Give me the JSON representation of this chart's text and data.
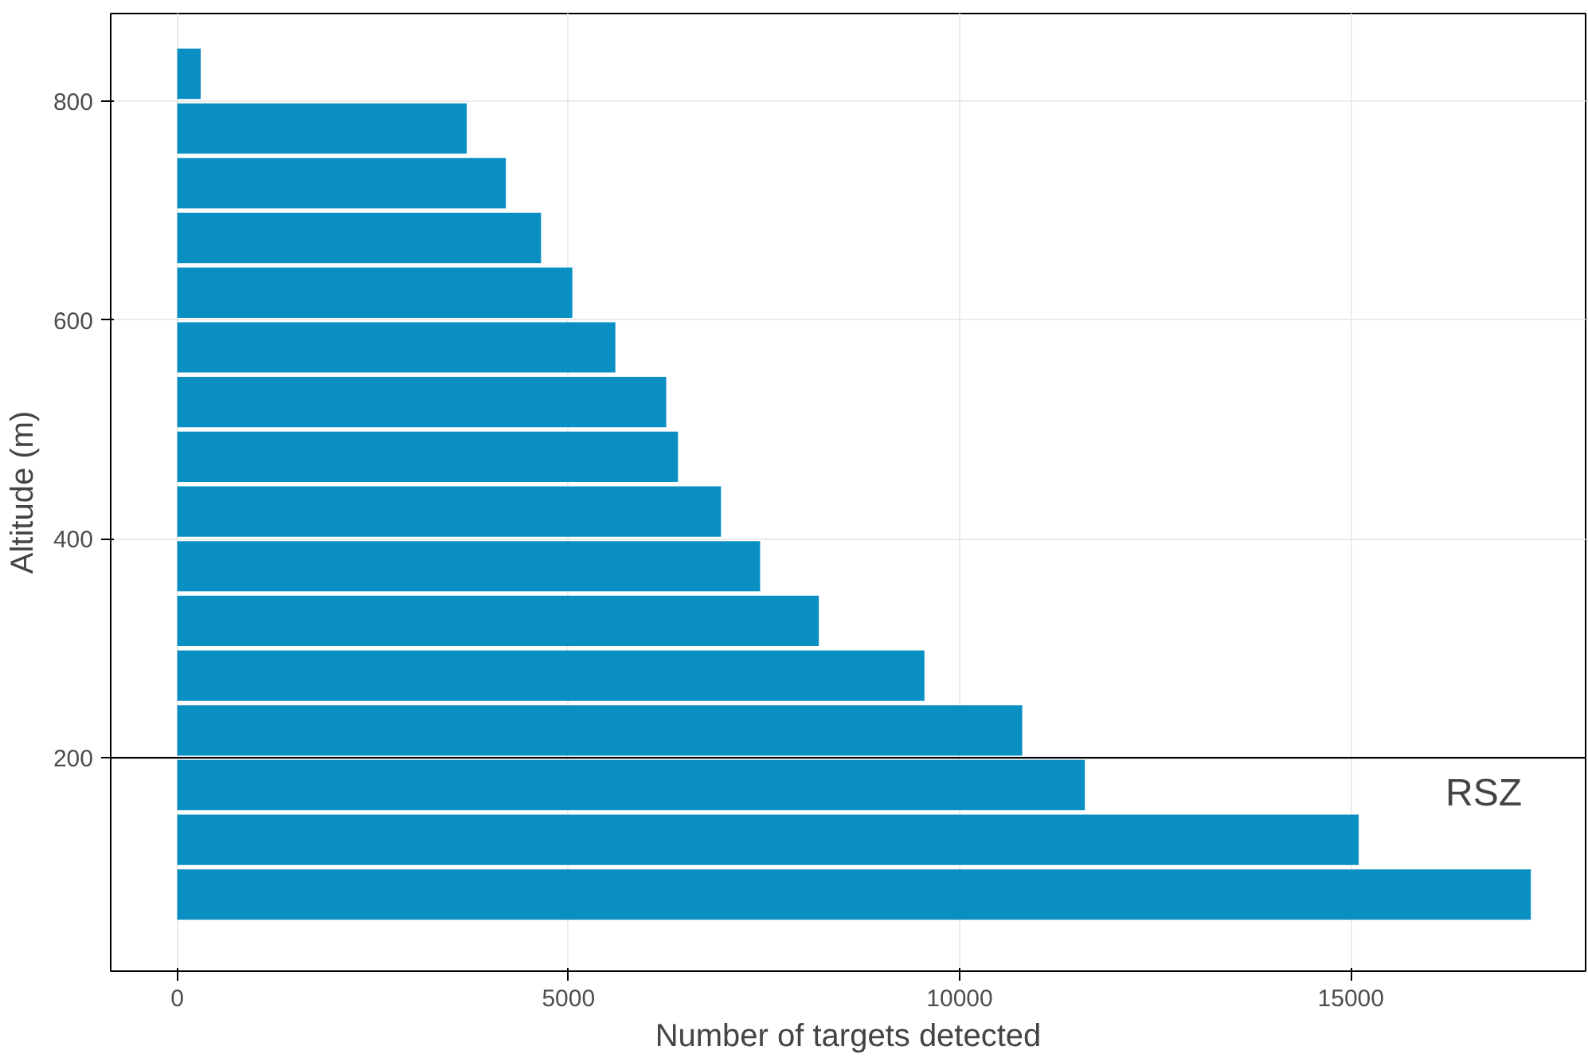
{
  "chart_data": {
    "type": "bar",
    "orientation": "horizontal",
    "xlabel": "Number of targets detected",
    "ylabel": "Altitude (m)",
    "x": [
      75,
      125,
      175,
      225,
      275,
      325,
      375,
      425,
      475,
      525,
      575,
      625,
      675,
      725,
      775,
      825
    ],
    "values": [
      17300,
      15100,
      11600,
      10800,
      9550,
      8200,
      7450,
      6950,
      6400,
      6250,
      5600,
      5050,
      4650,
      4200,
      3700,
      300
    ],
    "color": "#0a8fc3",
    "xlim": [
      -850,
      18000
    ],
    "xticks": [
      0,
      5000,
      10000,
      15000
    ],
    "ylim": [
      5,
      880
    ],
    "yticks": [
      200,
      400,
      600,
      800
    ],
    "grid": true,
    "ref_lines": [
      {
        "axis": "y",
        "value": 200,
        "label": "RSZ",
        "color": "#000000"
      }
    ]
  }
}
